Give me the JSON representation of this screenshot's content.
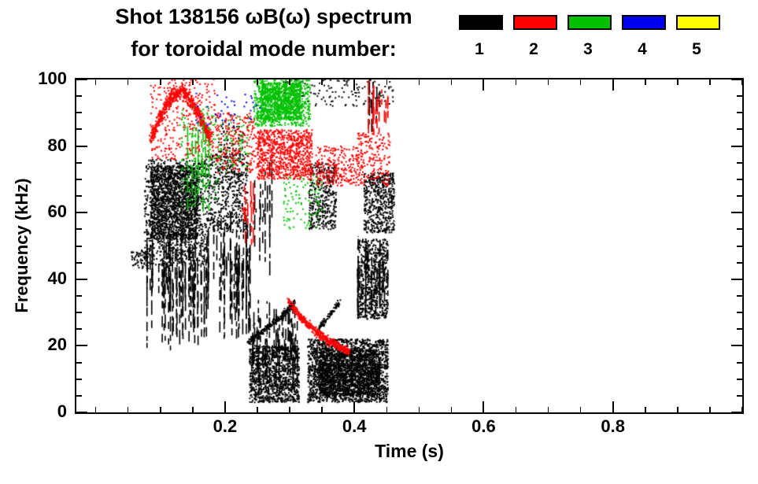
{
  "title": {
    "line1": "Shot 138156 ωB(ω) spectrum",
    "line2": "for toroidal mode number:"
  },
  "legend": {
    "entries": [
      {
        "label": "1",
        "color": "#000000"
      },
      {
        "label": "2",
        "color": "#ff0000"
      },
      {
        "label": "3",
        "color": "#00c000"
      },
      {
        "label": "4",
        "color": "#0000ee"
      },
      {
        "label": "5",
        "color": "#ffff00"
      }
    ]
  },
  "axes": {
    "xlabel": "Time (s)",
    "ylabel": "Frequency (kHz)",
    "x_tick_labels": [
      "0.2",
      "0.4",
      "0.6",
      "0.8"
    ],
    "y_tick_labels": [
      "0",
      "20",
      "40",
      "60",
      "80",
      "100"
    ]
  },
  "chart_data": {
    "type": "scatter",
    "title": "Shot 138156 ωB(ω) spectrum for toroidal mode number 1-5",
    "xlabel": "Time (s)",
    "ylabel": "Frequency (kHz)",
    "xlim": [
      -0.03,
      1.0
    ],
    "ylim": [
      0,
      100
    ],
    "xticks": [
      0.2,
      0.4,
      0.6,
      0.8
    ],
    "yticks": [
      0,
      20,
      40,
      60,
      80,
      100
    ],
    "x_minor_step": 0.05,
    "y_minor_step": 5,
    "grid": false,
    "legend_position": "top-right",
    "series": [
      {
        "name": "n=1",
        "mode": 1,
        "color": "#000000",
        "clusters": [
          {
            "kind": "speckle",
            "t": [
              0.075,
              0.17
            ],
            "f": [
              44,
              76
            ],
            "n": 900
          },
          {
            "kind": "speckle",
            "t": [
              0.085,
              0.158
            ],
            "f": [
              52,
              74
            ],
            "n": 1500
          },
          {
            "kind": "streaks",
            "t": [
              0.078,
              0.175
            ],
            "f": [
              18,
              56
            ],
            "streaks": 70
          },
          {
            "kind": "speckle",
            "t": [
              0.17,
              0.235
            ],
            "f": [
              54,
              78
            ],
            "n": 550
          },
          {
            "kind": "streaks",
            "t": [
              0.172,
              0.24
            ],
            "f": [
              22,
              62
            ],
            "streaks": 45
          },
          {
            "kind": "streaks",
            "t": [
              0.245,
              0.275
            ],
            "f": [
              40,
              76
            ],
            "streaks": 12
          },
          {
            "kind": "speckle",
            "t": [
              0.238,
              0.315
            ],
            "f": [
              3,
              20
            ],
            "n": 1100
          },
          {
            "kind": "streaks",
            "t": [
              0.24,
              0.315
            ],
            "f": [
              5,
              34
            ],
            "streaks": 40
          },
          {
            "kind": "curve",
            "path": [
              [
                0.236,
                21
              ],
              [
                0.262,
                25
              ],
              [
                0.288,
                29
              ],
              [
                0.308,
                33
              ]
            ],
            "thickness": 1.2,
            "n": 260
          },
          {
            "kind": "speckle",
            "t": [
              0.328,
              0.452
            ],
            "f": [
              3,
              22
            ],
            "n": 2000
          },
          {
            "kind": "speckle",
            "t": [
              0.345,
              0.44
            ],
            "f": [
              5,
              19
            ],
            "n": 1400
          },
          {
            "kind": "curve",
            "path": [
              [
                0.345,
                25
              ],
              [
                0.377,
                33
              ]
            ],
            "thickness": 1.0,
            "n": 90
          },
          {
            "kind": "speckle",
            "t": [
              0.33,
              0.372
            ],
            "f": [
              55,
              75
            ],
            "n": 380
          },
          {
            "kind": "speckle",
            "t": [
              0.405,
              0.452
            ],
            "f": [
              28,
              52
            ],
            "n": 600
          },
          {
            "kind": "streaks",
            "t": [
              0.405,
              0.452
            ],
            "f": [
              28,
              54
            ],
            "streaks": 25
          },
          {
            "kind": "speckle",
            "t": [
              0.415,
              0.462
            ],
            "f": [
              54,
              72
            ],
            "n": 520
          },
          {
            "kind": "speckle",
            "t": [
              0.29,
              0.46
            ],
            "f": [
              92,
              100
            ],
            "n": 130
          },
          {
            "kind": "streaks",
            "t": [
              0.418,
              0.442
            ],
            "f": [
              84,
              100
            ],
            "streaks": 10
          },
          {
            "kind": "speckle",
            "t": [
              0.055,
              0.082
            ],
            "f": [
              43,
              49
            ],
            "n": 70
          },
          {
            "kind": "speckle",
            "t": [
              0.19,
              0.23
            ],
            "f": [
              76,
              86
            ],
            "n": 60
          }
        ]
      },
      {
        "name": "n=2",
        "mode": 2,
        "color": "#ff0000",
        "clusters": [
          {
            "kind": "curve",
            "path": [
              [
                0.085,
                82
              ],
              [
                0.1,
                89
              ],
              [
                0.118,
                95
              ],
              [
                0.135,
                97
              ],
              [
                0.152,
                92
              ],
              [
                0.168,
                86
              ],
              [
                0.178,
                82
              ]
            ],
            "thickness": 2.5,
            "n": 650
          },
          {
            "kind": "speckle",
            "t": [
              0.085,
              0.185
            ],
            "f": [
              76,
              100
            ],
            "n": 300
          },
          {
            "kind": "speckle",
            "t": [
              0.185,
              0.25
            ],
            "f": [
              72,
              90
            ],
            "n": 230
          },
          {
            "kind": "streaks",
            "t": [
              0.225,
              0.245
            ],
            "f": [
              48,
              74
            ],
            "streaks": 8
          },
          {
            "kind": "speckle",
            "t": [
              0.25,
              0.335
            ],
            "f": [
              70,
              85
            ],
            "n": 850
          },
          {
            "kind": "curve",
            "path": [
              [
                0.298,
                33
              ],
              [
                0.322,
                27.5
              ],
              [
                0.348,
                23
              ],
              [
                0.372,
                20
              ],
              [
                0.392,
                18.3
              ]
            ],
            "thickness": 1.5,
            "n": 420
          },
          {
            "kind": "speckle",
            "t": [
              0.34,
              0.405
            ],
            "f": [
              68,
              80
            ],
            "n": 260
          },
          {
            "kind": "speckle",
            "t": [
              0.405,
              0.455
            ],
            "f": [
              68,
              84
            ],
            "n": 200
          },
          {
            "kind": "streaks",
            "t": [
              0.415,
              0.452
            ],
            "f": [
              82,
              100
            ],
            "streaks": 16
          }
        ]
      },
      {
        "name": "n=3",
        "mode": 3,
        "color": "#00c000",
        "clusters": [
          {
            "kind": "speckle",
            "t": [
              0.245,
              0.332
            ],
            "f": [
              86,
              100
            ],
            "n": 700
          },
          {
            "kind": "speckle",
            "t": [
              0.255,
              0.318
            ],
            "f": [
              88,
              99
            ],
            "n": 700
          },
          {
            "kind": "speckle",
            "t": [
              0.13,
              0.19
            ],
            "f": [
              62,
              92
            ],
            "n": 130
          },
          {
            "kind": "streaks",
            "t": [
              0.14,
              0.185
            ],
            "f": [
              60,
              88
            ],
            "streaks": 8
          },
          {
            "kind": "speckle",
            "t": [
              0.19,
              0.24
            ],
            "f": [
              72,
              90
            ],
            "n": 70
          },
          {
            "kind": "speckle",
            "t": [
              0.29,
              0.35
            ],
            "f": [
              55,
              72
            ],
            "n": 100
          }
        ]
      },
      {
        "name": "n=4",
        "mode": 4,
        "color": "#0000ee",
        "clusters": [
          {
            "kind": "speckle",
            "t": [
              0.155,
              0.215
            ],
            "f": [
              84,
              96
            ],
            "n": 30
          },
          {
            "kind": "speckle",
            "t": [
              0.225,
              0.255
            ],
            "f": [
              88,
              96
            ],
            "n": 12
          }
        ]
      },
      {
        "name": "n=5",
        "mode": 5,
        "color": "#ffff00",
        "clusters": []
      }
    ]
  }
}
